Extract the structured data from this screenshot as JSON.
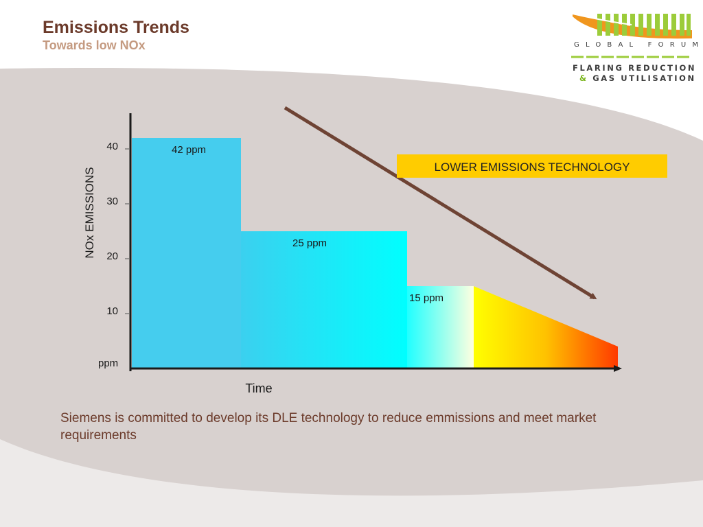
{
  "header": {
    "title": "Emissions Trends",
    "subtitle": "Towards low NOx"
  },
  "logo": {
    "line1": "GLOBAL FORUM",
    "line2": "FLARING REDUCTION",
    "amp": "&",
    "line3": "GAS UTILISATION",
    "colors": {
      "green": "#7ab51d",
      "orange": "#f0961e",
      "text": "#3c3c3c"
    }
  },
  "chart_data": {
    "type": "area",
    "title": "",
    "xlabel": "Time",
    "ylabel": "NOx EMISSIONS",
    "yunit_label": "ppm",
    "yticks": [
      10,
      20,
      30,
      40
    ],
    "ylim": [
      0,
      46
    ],
    "steps": [
      {
        "label": "42 ppm",
        "value": 42
      },
      {
        "label": "25 ppm",
        "value": 25
      },
      {
        "label": "15 ppm",
        "value": 15
      }
    ],
    "ramp_end_value": 4,
    "trend_annotation": "LOWER EMISSIONS TECHNOLOGY",
    "colors": {
      "step1": "#45cdee",
      "step2_from": "#3bd0ef",
      "step2_to": "#00ffff",
      "step3_from": "#20ffff",
      "step3_to": "#ffffe0",
      "ramp_from": "#ffff00",
      "ramp_mid": "#ffc200",
      "ramp_to": "#ff3a00",
      "arrow": "#6e4334",
      "annotation_bg": "#ffcc00",
      "axis": "#1a1a1a"
    }
  },
  "footer": {
    "caption": "Siemens is committed to develop its DLE technology to reduce emmissions and meet market requirements"
  }
}
